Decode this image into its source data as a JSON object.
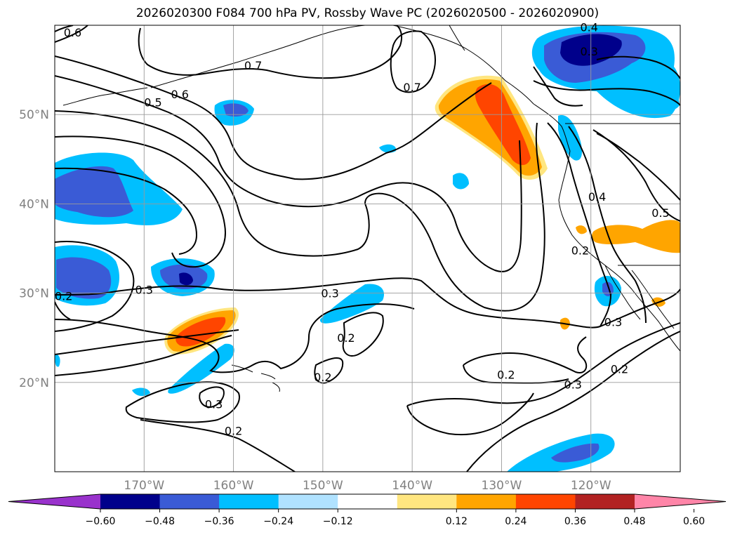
{
  "title": "2026020300 F084 700 hPa PV, Rossby Wave PC (2026020500 - 2026020900)",
  "map": {
    "lon_range": [
      -180,
      -110
    ],
    "lat_range": [
      10,
      60
    ],
    "lon_ticks": [
      {
        "value": -170,
        "label": "170°W"
      },
      {
        "value": -160,
        "label": "160°W"
      },
      {
        "value": -150,
        "label": "150°W"
      },
      {
        "value": -140,
        "label": "140°W"
      },
      {
        "value": -130,
        "label": "130°W"
      },
      {
        "value": -120,
        "label": "120°W"
      }
    ],
    "lat_ticks": [
      {
        "value": 20,
        "label": "20°N"
      },
      {
        "value": 30,
        "label": "30°N"
      },
      {
        "value": 40,
        "label": "40°N"
      },
      {
        "value": 50,
        "label": "50°N"
      }
    ],
    "grid": true
  },
  "contour_labels": [
    {
      "text": "0.6",
      "lon": -178.0,
      "lat": 59.2
    },
    {
      "text": "0.4",
      "lon": -120.2,
      "lat": 59.8
    },
    {
      "text": "0.3",
      "lon": -120.2,
      "lat": 57.1
    },
    {
      "text": "0.7",
      "lon": -157.8,
      "lat": 55.5
    },
    {
      "text": "0.7",
      "lon": -140.0,
      "lat": 53.1
    },
    {
      "text": "0.6",
      "lon": -166.0,
      "lat": 52.3
    },
    {
      "text": "0.5",
      "lon": -169.0,
      "lat": 51.4
    },
    {
      "text": "0.4",
      "lon": -119.3,
      "lat": 40.8
    },
    {
      "text": "0.5",
      "lon": -112.2,
      "lat": 39.0
    },
    {
      "text": "0.2",
      "lon": -121.2,
      "lat": 34.8
    },
    {
      "text": "0.3",
      "lon": -170.0,
      "lat": 30.4
    },
    {
      "text": "0.2",
      "lon": -179.0,
      "lat": 29.7
    },
    {
      "text": "0.3",
      "lon": -149.2,
      "lat": 30.0
    },
    {
      "text": "0.3",
      "lon": -117.5,
      "lat": 26.8
    },
    {
      "text": "0.2",
      "lon": -147.4,
      "lat": 25.0
    },
    {
      "text": "0.2",
      "lon": -116.8,
      "lat": 21.5
    },
    {
      "text": "0.2",
      "lon": -150.0,
      "lat": 20.6
    },
    {
      "text": "0.2",
      "lon": -129.5,
      "lat": 20.9
    },
    {
      "text": "0.3",
      "lon": -122.0,
      "lat": 19.8
    },
    {
      "text": "0.3",
      "lon": -162.2,
      "lat": 17.6
    },
    {
      "text": "0.2",
      "lon": -160.0,
      "lat": 14.6
    }
  ],
  "colorbar": {
    "ticks": [
      "−0.60",
      "−0.48",
      "−0.36",
      "−0.24",
      "−0.12",
      "0.12",
      "0.24",
      "0.36",
      "0.48",
      "0.60"
    ],
    "colors": [
      "#9932cc",
      "#00008b",
      "#3a5bd6",
      "#00bfff",
      "#b0e2ff",
      "#ffffff",
      "#ffe680",
      "#ffa500",
      "#ff4500",
      "#b22222",
      "#ff85a8"
    ],
    "extend": "both"
  }
}
